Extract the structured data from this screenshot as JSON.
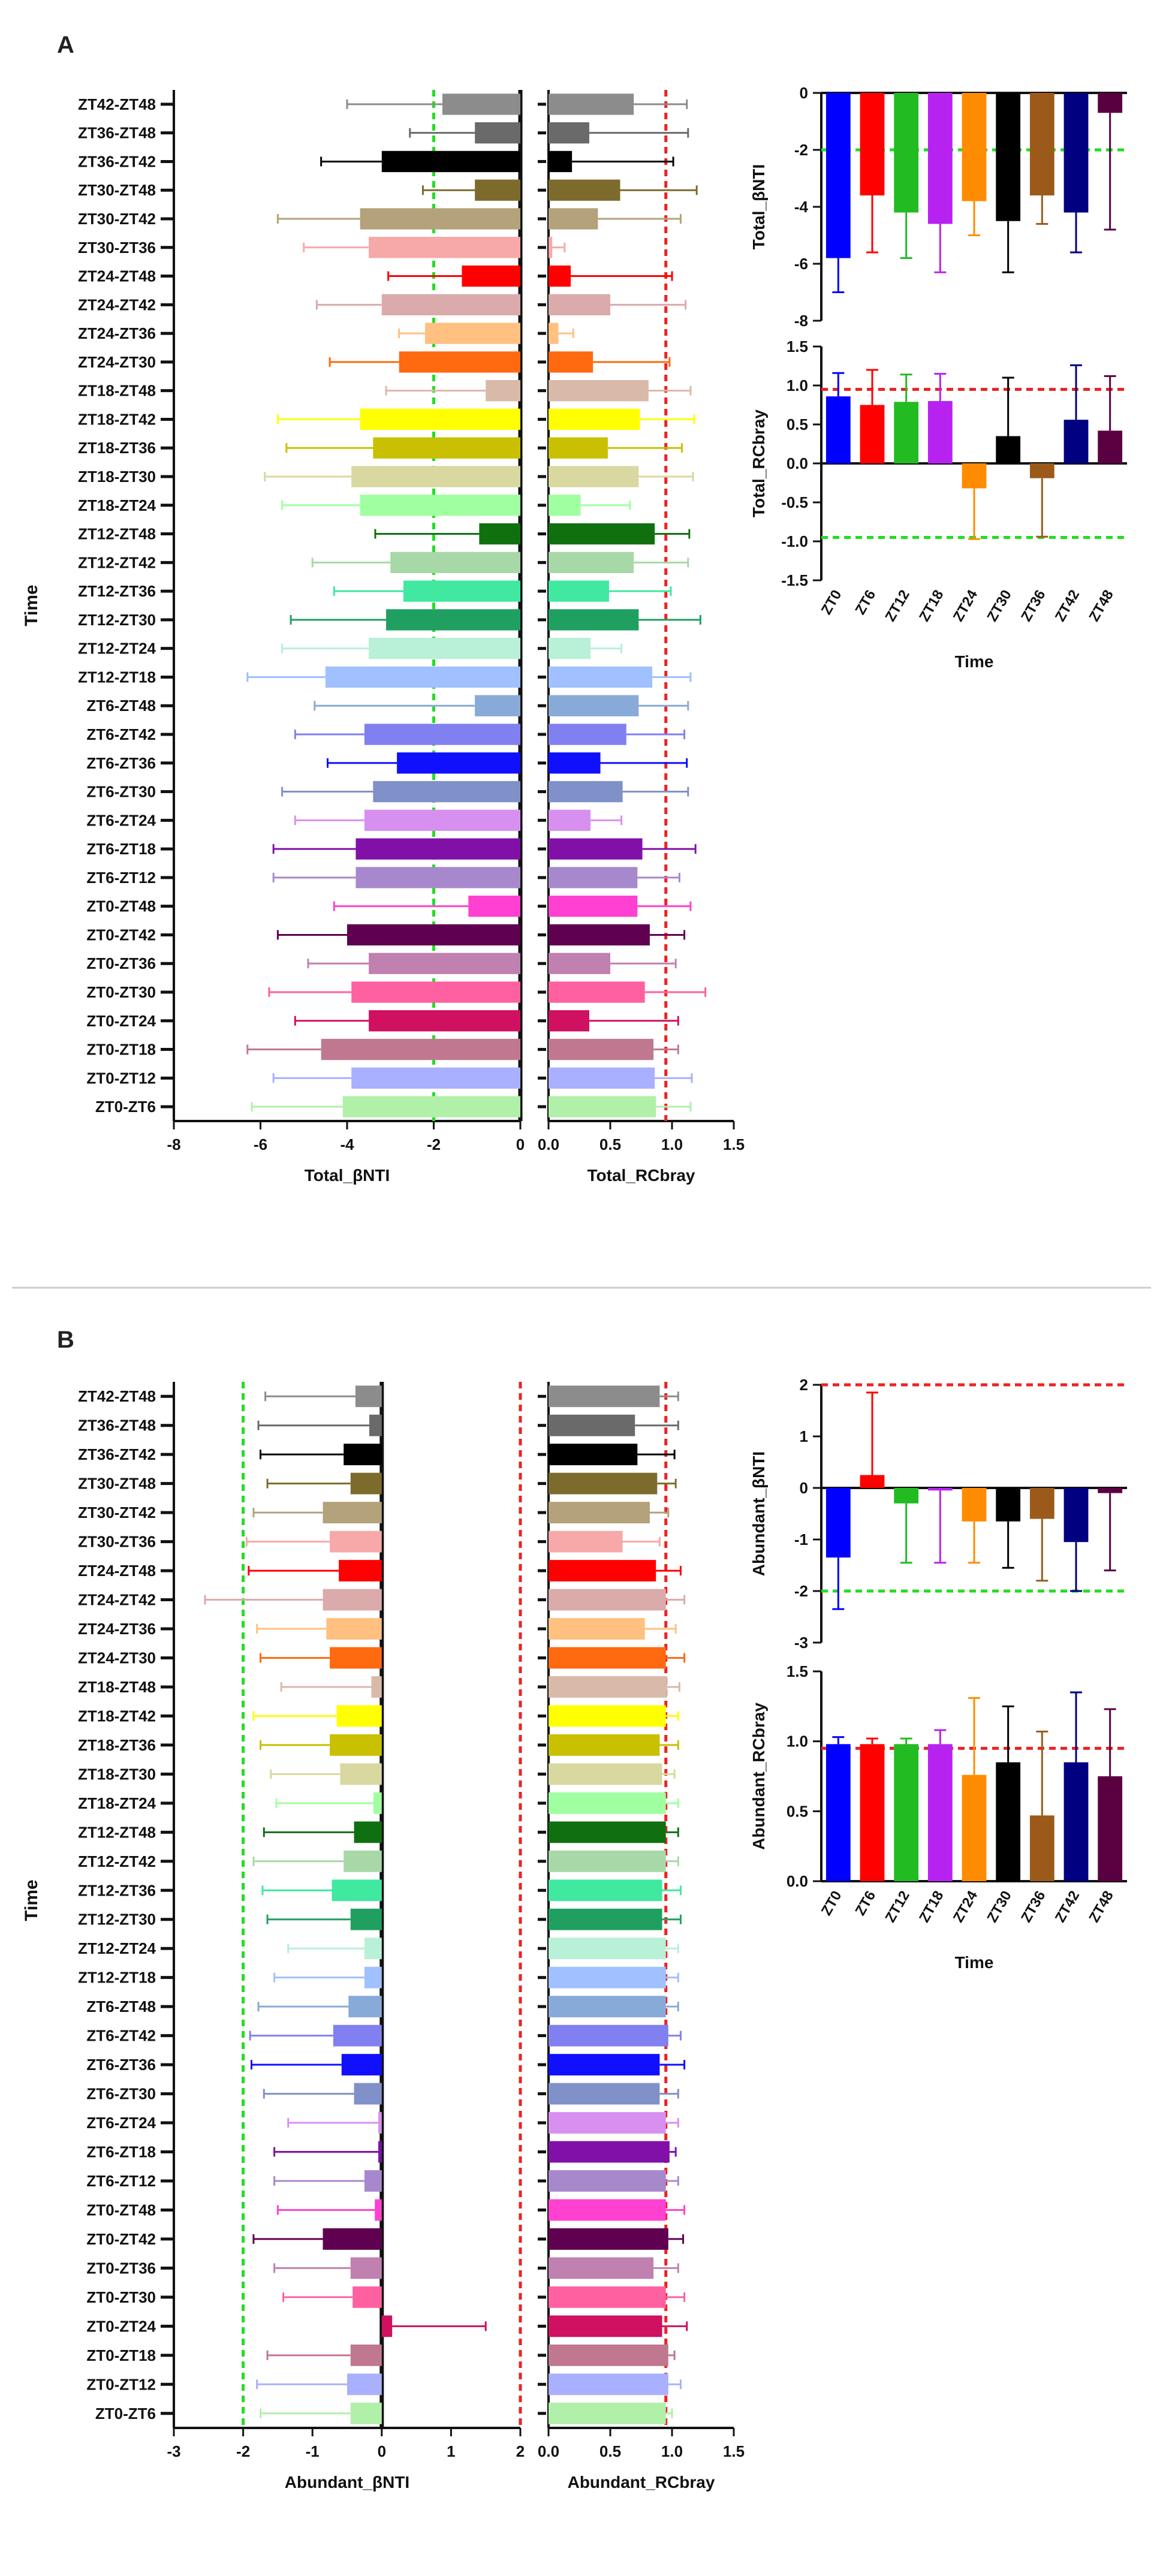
{
  "panels": {
    "A": {
      "label": "A",
      "categories": [
        "ZT42-ZT48",
        "ZT36-ZT48",
        "ZT36-ZT42",
        "ZT30-ZT48",
        "ZT30-ZT42",
        "ZT30-ZT36",
        "ZT24-ZT48",
        "ZT24-ZT42",
        "ZT24-ZT36",
        "ZT24-ZT30",
        "ZT18-ZT48",
        "ZT18-ZT42",
        "ZT18-ZT36",
        "ZT18-ZT30",
        "ZT18-ZT24",
        "ZT12-ZT48",
        "ZT12-ZT42",
        "ZT12-ZT36",
        "ZT12-ZT30",
        "ZT12-ZT24",
        "ZT12-ZT18",
        "ZT6-ZT48",
        "ZT6-ZT42",
        "ZT6-ZT36",
        "ZT6-ZT30",
        "ZT6-ZT24",
        "ZT6-ZT18",
        "ZT6-ZT12",
        "ZT0-ZT48",
        "ZT0-ZT42",
        "ZT0-ZT36",
        "ZT0-ZT30",
        "ZT0-ZT24",
        "ZT0-ZT18",
        "ZT0-ZT12",
        "ZT0-ZT6"
      ],
      "colors": [
        "#8c8c8c",
        "#6a6a6a",
        "#000000",
        "#7d6b2e",
        "#b3a27a",
        "#f7a8a8",
        "#ff0000",
        "#dbaaaa",
        "#ffc080",
        "#ff6a10",
        "#d9b9a8",
        "#ffff00",
        "#c8c000",
        "#d8d8a0",
        "#a0ffa0",
        "#107010",
        "#a8d8a8",
        "#40e8a0",
        "#20a060",
        "#b8f0d8",
        "#a0c0ff",
        "#88aad8",
        "#8080f0",
        "#1010ff",
        "#8090c8",
        "#d890f0",
        "#8010a8",
        "#a888cc",
        "#ff40d0",
        "#600050",
        "#c080b0",
        "#ff60a0",
        "#d01060",
        "#c07890",
        "#a8b0ff",
        "#b0f0a8"
      ]
    },
    "B": {
      "label": "B",
      "categories": [
        "ZT42-ZT48",
        "ZT36-ZT48",
        "ZT36-ZT42",
        "ZT30-ZT48",
        "ZT30-ZT42",
        "ZT30-ZT36",
        "ZT24-ZT48",
        "ZT24-ZT42",
        "ZT24-ZT36",
        "ZT24-ZT30",
        "ZT18-ZT48",
        "ZT18-ZT42",
        "ZT18-ZT36",
        "ZT18-ZT30",
        "ZT18-ZT24",
        "ZT12-ZT48",
        "ZT12-ZT42",
        "ZT12-ZT36",
        "ZT12-ZT30",
        "ZT12-ZT24",
        "ZT12-ZT18",
        "ZT6-ZT48",
        "ZT6-ZT42",
        "ZT6-ZT36",
        "ZT6-ZT30",
        "ZT6-ZT24",
        "ZT6-ZT18",
        "ZT6-ZT12",
        "ZT0-ZT48",
        "ZT0-ZT42",
        "ZT0-ZT36",
        "ZT0-ZT30",
        "ZT0-ZT24",
        "ZT0-ZT18",
        "ZT0-ZT12",
        "ZT0-ZT6"
      ],
      "colors": [
        "#8c8c8c",
        "#6a6a6a",
        "#000000",
        "#7d6b2e",
        "#b3a27a",
        "#f7a8a8",
        "#ff0000",
        "#dbaaaa",
        "#ffc080",
        "#ff6a10",
        "#d9b9a8",
        "#ffff00",
        "#c8c000",
        "#d8d8a0",
        "#a0ffa0",
        "#107010",
        "#a8d8a8",
        "#40e8a0",
        "#20a060",
        "#b8f0d8",
        "#a0c0ff",
        "#88aad8",
        "#8080f0",
        "#1010ff",
        "#8090c8",
        "#d890f0",
        "#8010a8",
        "#a888cc",
        "#ff40d0",
        "#600050",
        "#c080b0",
        "#ff60a0",
        "#d01060",
        "#c07890",
        "#a8b0ff",
        "#b0f0a8"
      ]
    }
  },
  "chart_data": [
    {
      "id": "A-total-bnti",
      "type": "bar",
      "orientation": "horizontal",
      "ylabel": "Time",
      "xlabel": "Total_βNTI",
      "xlim": [
        -8,
        0
      ],
      "xticks": [
        "-8",
        "-6",
        "-4",
        "-2",
        "0"
      ],
      "xtick_values": [
        -8,
        -6,
        -4,
        -2,
        0
      ],
      "reference_line": {
        "value": -2,
        "color": "#22dd22"
      },
      "values": [
        -1.8,
        -1.05,
        -3.2,
        -1.05,
        -3.7,
        -3.5,
        -1.35,
        -3.2,
        -2.2,
        -2.8,
        -0.8,
        -3.7,
        -3.4,
        -3.9,
        -3.7,
        -0.95,
        -3.0,
        -2.7,
        -3.1,
        -3.5,
        -4.5,
        -1.05,
        -3.6,
        -2.85,
        -3.4,
        -3.6,
        -3.8,
        -3.8,
        -1.2,
        -4.0,
        -3.5,
        -3.9,
        -3.5,
        -4.6,
        -3.9,
        -4.1
      ],
      "errors": [
        2.2,
        1.5,
        1.4,
        1.2,
        1.9,
        1.5,
        1.7,
        1.5,
        0.6,
        1.6,
        2.3,
        1.9,
        2.0,
        2.0,
        1.8,
        2.4,
        1.8,
        1.6,
        2.2,
        2.0,
        1.8,
        3.7,
        1.6,
        1.6,
        2.1,
        1.6,
        1.9,
        1.9,
        3.1,
        1.6,
        1.4,
        1.9,
        1.7,
        1.7,
        1.8,
        2.1
      ]
    },
    {
      "id": "A-total-rcbray",
      "type": "bar",
      "orientation": "horizontal",
      "xlabel": "Total_RCbray",
      "xlim": [
        0,
        1.5
      ],
      "xticks": [
        "0.0",
        "0.5",
        "1.0",
        "1.5"
      ],
      "xtick_values": [
        0,
        0.5,
        1.0,
        1.5
      ],
      "reference_line": {
        "value": 0.95,
        "color": "#ee2222"
      },
      "values": [
        0.69,
        0.33,
        0.19,
        0.58,
        0.4,
        0.03,
        0.18,
        0.5,
        0.08,
        0.36,
        0.81,
        0.74,
        0.48,
        0.73,
        0.26,
        0.86,
        0.69,
        0.49,
        0.73,
        0.34,
        0.84,
        0.73,
        0.63,
        0.42,
        0.6,
        0.34,
        0.76,
        0.72,
        0.72,
        0.82,
        0.5,
        0.78,
        0.33,
        0.85,
        0.86,
        0.87
      ],
      "errors": [
        0.43,
        0.8,
        0.82,
        0.62,
        0.67,
        0.1,
        0.82,
        0.61,
        0.12,
        0.62,
        0.34,
        0.44,
        0.6,
        0.44,
        0.4,
        0.28,
        0.44,
        0.5,
        0.5,
        0.25,
        0.31,
        0.4,
        0.47,
        0.7,
        0.53,
        0.25,
        0.43,
        0.34,
        0.43,
        0.28,
        0.53,
        0.49,
        0.72,
        0.2,
        0.3,
        0.28
      ]
    },
    {
      "id": "A-total-bnti-time",
      "type": "bar",
      "categories": [
        "ZT0",
        "ZT6",
        "ZT12",
        "ZT18",
        "ZT24",
        "ZT30",
        "ZT36",
        "ZT42",
        "ZT48"
      ],
      "colors": [
        "#0000ff",
        "#ff0000",
        "#22bb22",
        "#b822f0",
        "#ff8c00",
        "#000000",
        "#9c5a1a",
        "#000080",
        "#5a0040"
      ],
      "values": [
        -5.8,
        -3.6,
        -4.2,
        -4.6,
        -3.8,
        -4.5,
        -3.6,
        -4.2,
        -0.7
      ],
      "errors": [
        1.2,
        2.0,
        1.6,
        1.7,
        1.2,
        1.8,
        1.0,
        1.4,
        4.1
      ],
      "ylabel": "Total_βNTI",
      "ylim": [
        -8,
        0
      ],
      "yticks": [
        "-8",
        "-6",
        "-4",
        "-2",
        "0"
      ],
      "ytick_values": [
        -8,
        -6,
        -4,
        -2,
        0
      ],
      "reference_lines": [
        {
          "value": -2,
          "color": "#22dd22"
        }
      ]
    },
    {
      "id": "A-total-rcbray-time",
      "type": "bar",
      "categories": [
        "ZT0",
        "ZT6",
        "ZT12",
        "ZT18",
        "ZT24",
        "ZT30",
        "ZT36",
        "ZT42",
        "ZT48"
      ],
      "colors": [
        "#0000ff",
        "#ff0000",
        "#22bb22",
        "#b822f0",
        "#ff8c00",
        "#000000",
        "#9c5a1a",
        "#000080",
        "#5a0040"
      ],
      "values": [
        0.86,
        0.75,
        0.79,
        0.8,
        -0.32,
        0.35,
        -0.19,
        0.56,
        0.42
      ],
      "errors": [
        0.3,
        0.45,
        0.35,
        0.35,
        0.65,
        0.75,
        0.75,
        0.7,
        0.7
      ],
      "xlabel": "Time",
      "ylabel": "Total_RCbray",
      "ylim": [
        -1.5,
        1.5
      ],
      "yticks": [
        "-1.5",
        "-1.0",
        "-0.5",
        "0.0",
        "0.5",
        "1.0",
        "1.5"
      ],
      "ytick_values": [
        -1.5,
        -1.0,
        -0.5,
        0,
        0.5,
        1.0,
        1.5
      ],
      "reference_lines": [
        {
          "value": 0.95,
          "color": "#ee2222"
        },
        {
          "value": -0.95,
          "color": "#22dd22"
        }
      ]
    },
    {
      "id": "B-abundant-bnti",
      "type": "bar",
      "orientation": "horizontal",
      "ylabel": "Time",
      "xlabel": "Abundant_βNTI",
      "xlim": [
        -3,
        2
      ],
      "xticks": [
        "-3",
        "-2",
        "-1",
        "0",
        "1",
        "2"
      ],
      "xtick_values": [
        -3,
        -2,
        -1,
        0,
        1,
        2
      ],
      "reference_lines": [
        {
          "value": -2,
          "color": "#22dd22"
        },
        {
          "value": 2,
          "color": "#ee2222"
        }
      ],
      "values": [
        -0.38,
        -0.18,
        -0.55,
        -0.45,
        -0.85,
        -0.75,
        -0.62,
        -0.85,
        -0.8,
        -0.75,
        -0.15,
        -0.65,
        -0.75,
        -0.6,
        -0.12,
        -0.4,
        -0.55,
        -0.72,
        -0.45,
        -0.25,
        -0.25,
        -0.48,
        -0.7,
        -0.58,
        -0.4,
        -0.05,
        -0.05,
        -0.25,
        -0.1,
        -0.85,
        -0.45,
        -0.42,
        0.15,
        -0.45,
        -0.5,
        -0.45
      ],
      "errors": [
        1.3,
        1.6,
        1.2,
        1.2,
        1.0,
        1.2,
        1.3,
        1.7,
        1.0,
        1.0,
        1.3,
        1.2,
        1.0,
        1.0,
        1.4,
        1.3,
        1.3,
        1.0,
        1.2,
        1.1,
        1.3,
        1.3,
        1.2,
        1.3,
        1.3,
        1.3,
        1.5,
        1.3,
        1.4,
        1.0,
        1.1,
        1.0,
        1.35,
        1.2,
        1.3,
        1.3
      ]
    },
    {
      "id": "B-abundant-rcbray",
      "type": "bar",
      "orientation": "horizontal",
      "xlabel": "Abundant_RCbray",
      "xlim": [
        0,
        1.5
      ],
      "xticks": [
        "0.0",
        "0.5",
        "1.0",
        "1.5"
      ],
      "xtick_values": [
        0,
        0.5,
        1.0,
        1.5
      ],
      "reference_line": {
        "value": 0.95,
        "color": "#ee2222"
      },
      "values": [
        0.9,
        0.7,
        0.72,
        0.88,
        0.82,
        0.6,
        0.87,
        0.95,
        0.78,
        0.95,
        0.96,
        0.95,
        0.9,
        0.92,
        0.95,
        0.95,
        0.95,
        0.92,
        0.92,
        0.95,
        0.95,
        0.95,
        0.97,
        0.9,
        0.9,
        0.95,
        0.98,
        0.95,
        0.95,
        0.97,
        0.85,
        0.95,
        0.92,
        0.97,
        0.97,
        0.95
      ],
      "errors": [
        0.15,
        0.35,
        0.3,
        0.15,
        0.15,
        0.3,
        0.2,
        0.15,
        0.25,
        0.15,
        0.1,
        0.1,
        0.15,
        0.1,
        0.1,
        0.1,
        0.1,
        0.15,
        0.15,
        0.1,
        0.1,
        0.1,
        0.1,
        0.2,
        0.15,
        0.1,
        0.05,
        0.1,
        0.15,
        0.12,
        0.2,
        0.15,
        0.2,
        0.05,
        0.1,
        0.05
      ]
    },
    {
      "id": "B-abundant-bnti-time",
      "type": "bar",
      "categories": [
        "ZT0",
        "ZT6",
        "ZT12",
        "ZT18",
        "ZT24",
        "ZT30",
        "ZT36",
        "ZT42",
        "ZT48"
      ],
      "colors": [
        "#0000ff",
        "#ff0000",
        "#22bb22",
        "#b822f0",
        "#ff8c00",
        "#000000",
        "#9c5a1a",
        "#000080",
        "#5a0040"
      ],
      "values": [
        -1.35,
        0.25,
        -0.3,
        -0.05,
        -0.65,
        -0.65,
        -0.6,
        -1.05,
        -0.1
      ],
      "errors": [
        1.0,
        1.6,
        1.15,
        1.4,
        0.8,
        0.9,
        1.2,
        0.95,
        1.5
      ],
      "ylabel": "Abundant_βNTI",
      "ylim": [
        -3,
        2
      ],
      "yticks": [
        "-3",
        "-2",
        "-1",
        "0",
        "1",
        "2"
      ],
      "ytick_values": [
        -3,
        -2,
        -1,
        0,
        1,
        2
      ],
      "reference_lines": [
        {
          "value": 2,
          "color": "#ee2222"
        },
        {
          "value": -2,
          "color": "#22dd22"
        }
      ]
    },
    {
      "id": "B-abundant-rcbray-time",
      "type": "bar",
      "categories": [
        "ZT0",
        "ZT6",
        "ZT12",
        "ZT18",
        "ZT24",
        "ZT30",
        "ZT36",
        "ZT42",
        "ZT48"
      ],
      "colors": [
        "#0000ff",
        "#ff0000",
        "#22bb22",
        "#b822f0",
        "#ff8c00",
        "#000000",
        "#9c5a1a",
        "#000080",
        "#5a0040"
      ],
      "values": [
        0.98,
        0.98,
        0.98,
        0.98,
        0.76,
        0.85,
        0.47,
        0.85,
        0.75
      ],
      "errors": [
        0.05,
        0.04,
        0.04,
        0.1,
        0.55,
        0.4,
        0.6,
        0.5,
        0.48
      ],
      "xlabel": "Time",
      "ylabel": "Abundant_RCbray",
      "ylim": [
        0,
        1.5
      ],
      "yticks": [
        "0.0",
        "0.5",
        "1.0",
        "1.5"
      ],
      "ytick_values": [
        0,
        0.5,
        1.0,
        1.5
      ],
      "reference_lines": [
        {
          "value": 0.95,
          "color": "#ee2222"
        }
      ]
    }
  ]
}
